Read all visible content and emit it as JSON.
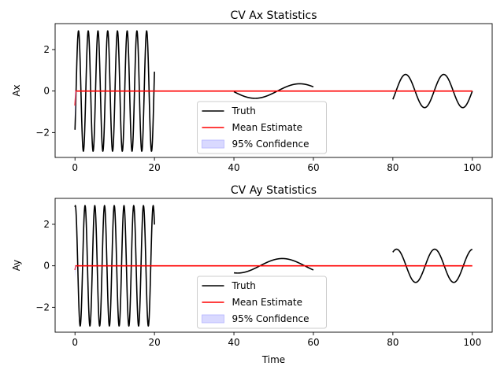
{
  "colors": {
    "truth": "#000000",
    "mean": "#ff0000",
    "confidence": "#b4b4ff"
  },
  "chart_data": [
    {
      "type": "line",
      "title": "CV Ax Statistics",
      "xlabel": "",
      "ylabel": "Ax",
      "xlim": [
        -5,
        105
      ],
      "ylim": [
        -3.2,
        3.25
      ],
      "xticks": [
        0,
        20,
        40,
        60,
        80,
        100
      ],
      "yticks": [
        -2,
        0,
        2
      ],
      "grid": false,
      "legend": {
        "location": "lower center",
        "entries": [
          "Truth",
          "Mean Estimate",
          "95% Confidence"
        ]
      },
      "series": [
        {
          "name": "Truth",
          "segments": [
            {
              "x_range": [
                0,
                20
              ],
              "form": "sinusoid",
              "amplitude": 2.9,
              "period": 2.45,
              "phase_deg": 320
            },
            {
              "x_range": [
                40,
                60
              ],
              "form": "sinusoid",
              "amplitude": 0.35,
              "period": 22.5,
              "phase_deg": 185
            },
            {
              "x_range": [
                80,
                100
              ],
              "form": "sinusoid",
              "amplitude": 0.8,
              "period": 9.6,
              "phase_deg": 330
            }
          ]
        },
        {
          "name": "Mean Estimate",
          "x": [
            0,
            0.2,
            100
          ],
          "y": [
            -0.7,
            0,
            0
          ]
        },
        {
          "name": "95% Confidence",
          "x": [
            0,
            0.3,
            100
          ],
          "upper": [
            0,
            0,
            0
          ],
          "lower": [
            -1.4,
            0,
            0
          ]
        }
      ]
    },
    {
      "type": "line",
      "title": "CV Ay Statistics",
      "xlabel": "Time",
      "ylabel": "Ay",
      "xlim": [
        -5,
        105
      ],
      "ylim": [
        -3.2,
        3.25
      ],
      "xticks": [
        0,
        20,
        40,
        60,
        80,
        100
      ],
      "yticks": [
        -2,
        0,
        2
      ],
      "grid": false,
      "legend": {
        "location": "lower center",
        "entries": [
          "Truth",
          "Mean Estimate",
          "95% Confidence"
        ]
      },
      "series": [
        {
          "name": "Truth",
          "segments": [
            {
              "x_range": [
                0,
                20
              ],
              "form": "sinusoid",
              "amplitude": 2.9,
              "period": 2.45,
              "phase_deg": 78
            },
            {
              "x_range": [
                40,
                60
              ],
              "form": "sinusoid",
              "amplitude": 0.35,
              "period": 22.5,
              "phase_deg": 255
            },
            {
              "x_range": [
                80,
                100
              ],
              "form": "sinusoid",
              "amplitude": 0.8,
              "period": 9.6,
              "phase_deg": 55
            }
          ]
        },
        {
          "name": "Mean Estimate",
          "x": [
            0,
            0.2,
            100
          ],
          "y": [
            -0.2,
            0,
            0
          ]
        },
        {
          "name": "95% Confidence",
          "x": [
            0,
            0.3,
            100
          ],
          "upper": [
            0,
            0,
            0
          ],
          "lower": [
            -0.6,
            0,
            0
          ]
        }
      ]
    }
  ]
}
